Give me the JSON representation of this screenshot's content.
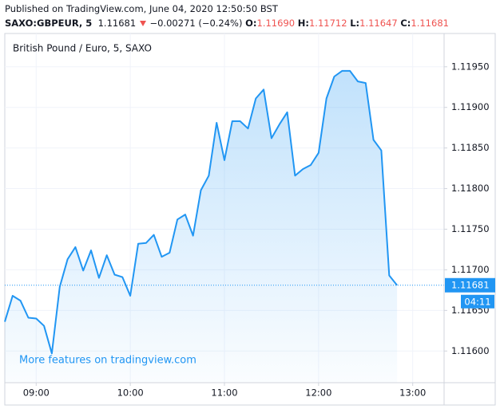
{
  "header": {
    "published": "Published on TradingView.com, June 04, 2020 12:50:50 BST",
    "symbol": "SAXO:GBPEUR, 5",
    "price": "1.11681",
    "change": "−0.00271 (−0.24%)",
    "open_label": "O:",
    "open": "1.11690",
    "high_label": "H:",
    "high": "1.11712",
    "low_label": "L:",
    "low": "1.11647",
    "close_label": "C:",
    "close": "1.11681"
  },
  "chart_data": {
    "type": "area",
    "title": "British Pound / Euro, 5, SAXO",
    "annotation": "More features on tradingview.com",
    "x": [
      "08:40",
      "08:45",
      "08:50",
      "08:55",
      "09:00",
      "09:05",
      "09:10",
      "09:15",
      "09:20",
      "09:25",
      "09:30",
      "09:35",
      "09:40",
      "09:45",
      "09:50",
      "09:55",
      "10:00",
      "10:05",
      "10:10",
      "10:15",
      "10:20",
      "10:25",
      "10:30",
      "10:35",
      "10:40",
      "10:45",
      "10:50",
      "10:55",
      "11:00",
      "11:05",
      "11:10",
      "11:15",
      "11:20",
      "11:25",
      "11:30",
      "11:35",
      "11:40",
      "11:45",
      "11:50",
      "11:55",
      "12:00",
      "12:05",
      "12:10",
      "12:15",
      "12:20",
      "12:25",
      "12:30",
      "12:35",
      "12:40",
      "12:45",
      "12:50"
    ],
    "series": [
      {
        "name": "GBPEUR",
        "color": "#2196f3",
        "values": [
          1.11636,
          1.11668,
          1.11662,
          1.11641,
          1.1164,
          1.11631,
          1.11597,
          1.11679,
          1.11713,
          1.11728,
          1.11699,
          1.11724,
          1.1169,
          1.11718,
          1.11694,
          1.11691,
          1.11668,
          1.11732,
          1.11733,
          1.11743,
          1.11716,
          1.11721,
          1.11762,
          1.11768,
          1.11742,
          1.11798,
          1.11816,
          1.11881,
          1.11835,
          1.11883,
          1.11883,
          1.11874,
          1.11911,
          1.11922,
          1.11862,
          1.11879,
          1.11894,
          1.11816,
          1.11824,
          1.11829,
          1.11844,
          1.11911,
          1.11938,
          1.11945,
          1.11945,
          1.11932,
          1.1193,
          1.1186,
          1.11847,
          1.11693,
          1.11681
        ]
      }
    ],
    "countdown": "04:11",
    "xlim": [
      "08:40",
      "13:20"
    ],
    "xticks": [
      "09:00",
      "10:00",
      "11:00",
      "12:00",
      "13:00"
    ],
    "ylim": [
      1.11561,
      1.11991
    ],
    "yticks": [
      {
        "value": 1.116,
        "label": "1.11600"
      },
      {
        "value": 1.1165,
        "label": "1.11650"
      },
      {
        "value": 1.117,
        "label": "1.11700"
      },
      {
        "value": 1.1175,
        "label": "1.11750"
      },
      {
        "value": 1.118,
        "label": "1.11800"
      },
      {
        "value": 1.1185,
        "label": "1.11850"
      },
      {
        "value": 1.119,
        "label": "1.11900"
      },
      {
        "value": 1.1195,
        "label": "1.11950"
      }
    ],
    "grid": true
  }
}
